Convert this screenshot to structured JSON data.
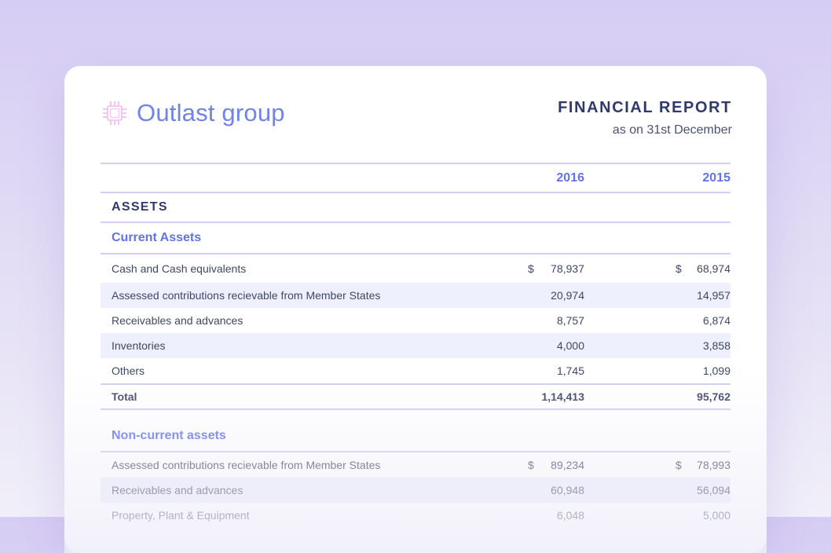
{
  "brand": {
    "name": "Outlast group",
    "icon": "chip-icon",
    "color": "#6f82ee"
  },
  "report": {
    "title": "FINANCIAL REPORT",
    "subtitle": "as on 31st December"
  },
  "columns": {
    "year1": "2016",
    "year2": "2015"
  },
  "assets_label": "ASSETS",
  "current_assets": {
    "title": "Current Assets",
    "rows": [
      {
        "label": "Cash and Cash equivalents",
        "cur1": "$",
        "v1": "78,937",
        "cur2": "$",
        "v2": "68,974"
      },
      {
        "label": "Assessed contributions recievable from Member States",
        "v1": "20,974",
        "v2": "14,957"
      },
      {
        "label": "Receivables and advances",
        "v1": "8,757",
        "v2": "6,874"
      },
      {
        "label": "Inventories",
        "v1": "4,000",
        "v2": "3,858"
      },
      {
        "label": "Others",
        "v1": "1,745",
        "v2": "1,099"
      }
    ],
    "total": {
      "label": "Total",
      "v1": "1,14,413",
      "v2": "95,762"
    }
  },
  "noncurrent_assets": {
    "title": "Non-current assets",
    "rows": [
      {
        "label": "Assessed contributions recievable from Member States",
        "cur1": "$",
        "v1": "89,234",
        "cur2": "$",
        "v2": "78,993"
      },
      {
        "label": "Receivables and advances",
        "v1": "60,948",
        "v2": "56,094"
      },
      {
        "label": "Property, Plant & Equipment",
        "v1": "6,048",
        "v2": "5,000"
      }
    ]
  }
}
